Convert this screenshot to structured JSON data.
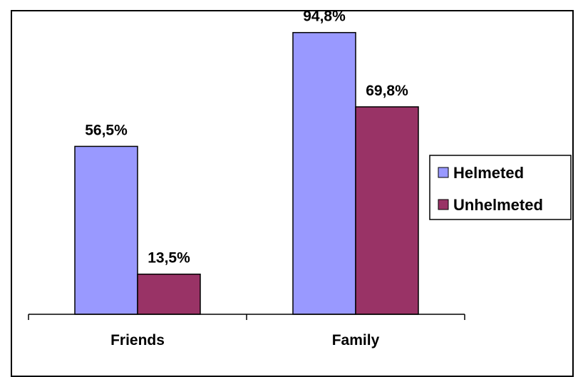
{
  "chart_data": {
    "type": "bar",
    "categories": [
      "Friends",
      "Family"
    ],
    "series": [
      {
        "name": "Helmeted",
        "values": [
          56.5,
          94.8
        ],
        "labels": [
          "56,5%",
          "94,8%"
        ],
        "color": "#9999FF"
      },
      {
        "name": "Unhelmeted",
        "values": [
          13.5,
          69.8
        ],
        "labels": [
          "13,5%",
          "69,8%"
        ],
        "color": "#993366"
      }
    ],
    "title": "",
    "xlabel": "",
    "ylabel": "",
    "ylim": [
      0,
      100
    ],
    "grid": false,
    "legend": "right"
  }
}
